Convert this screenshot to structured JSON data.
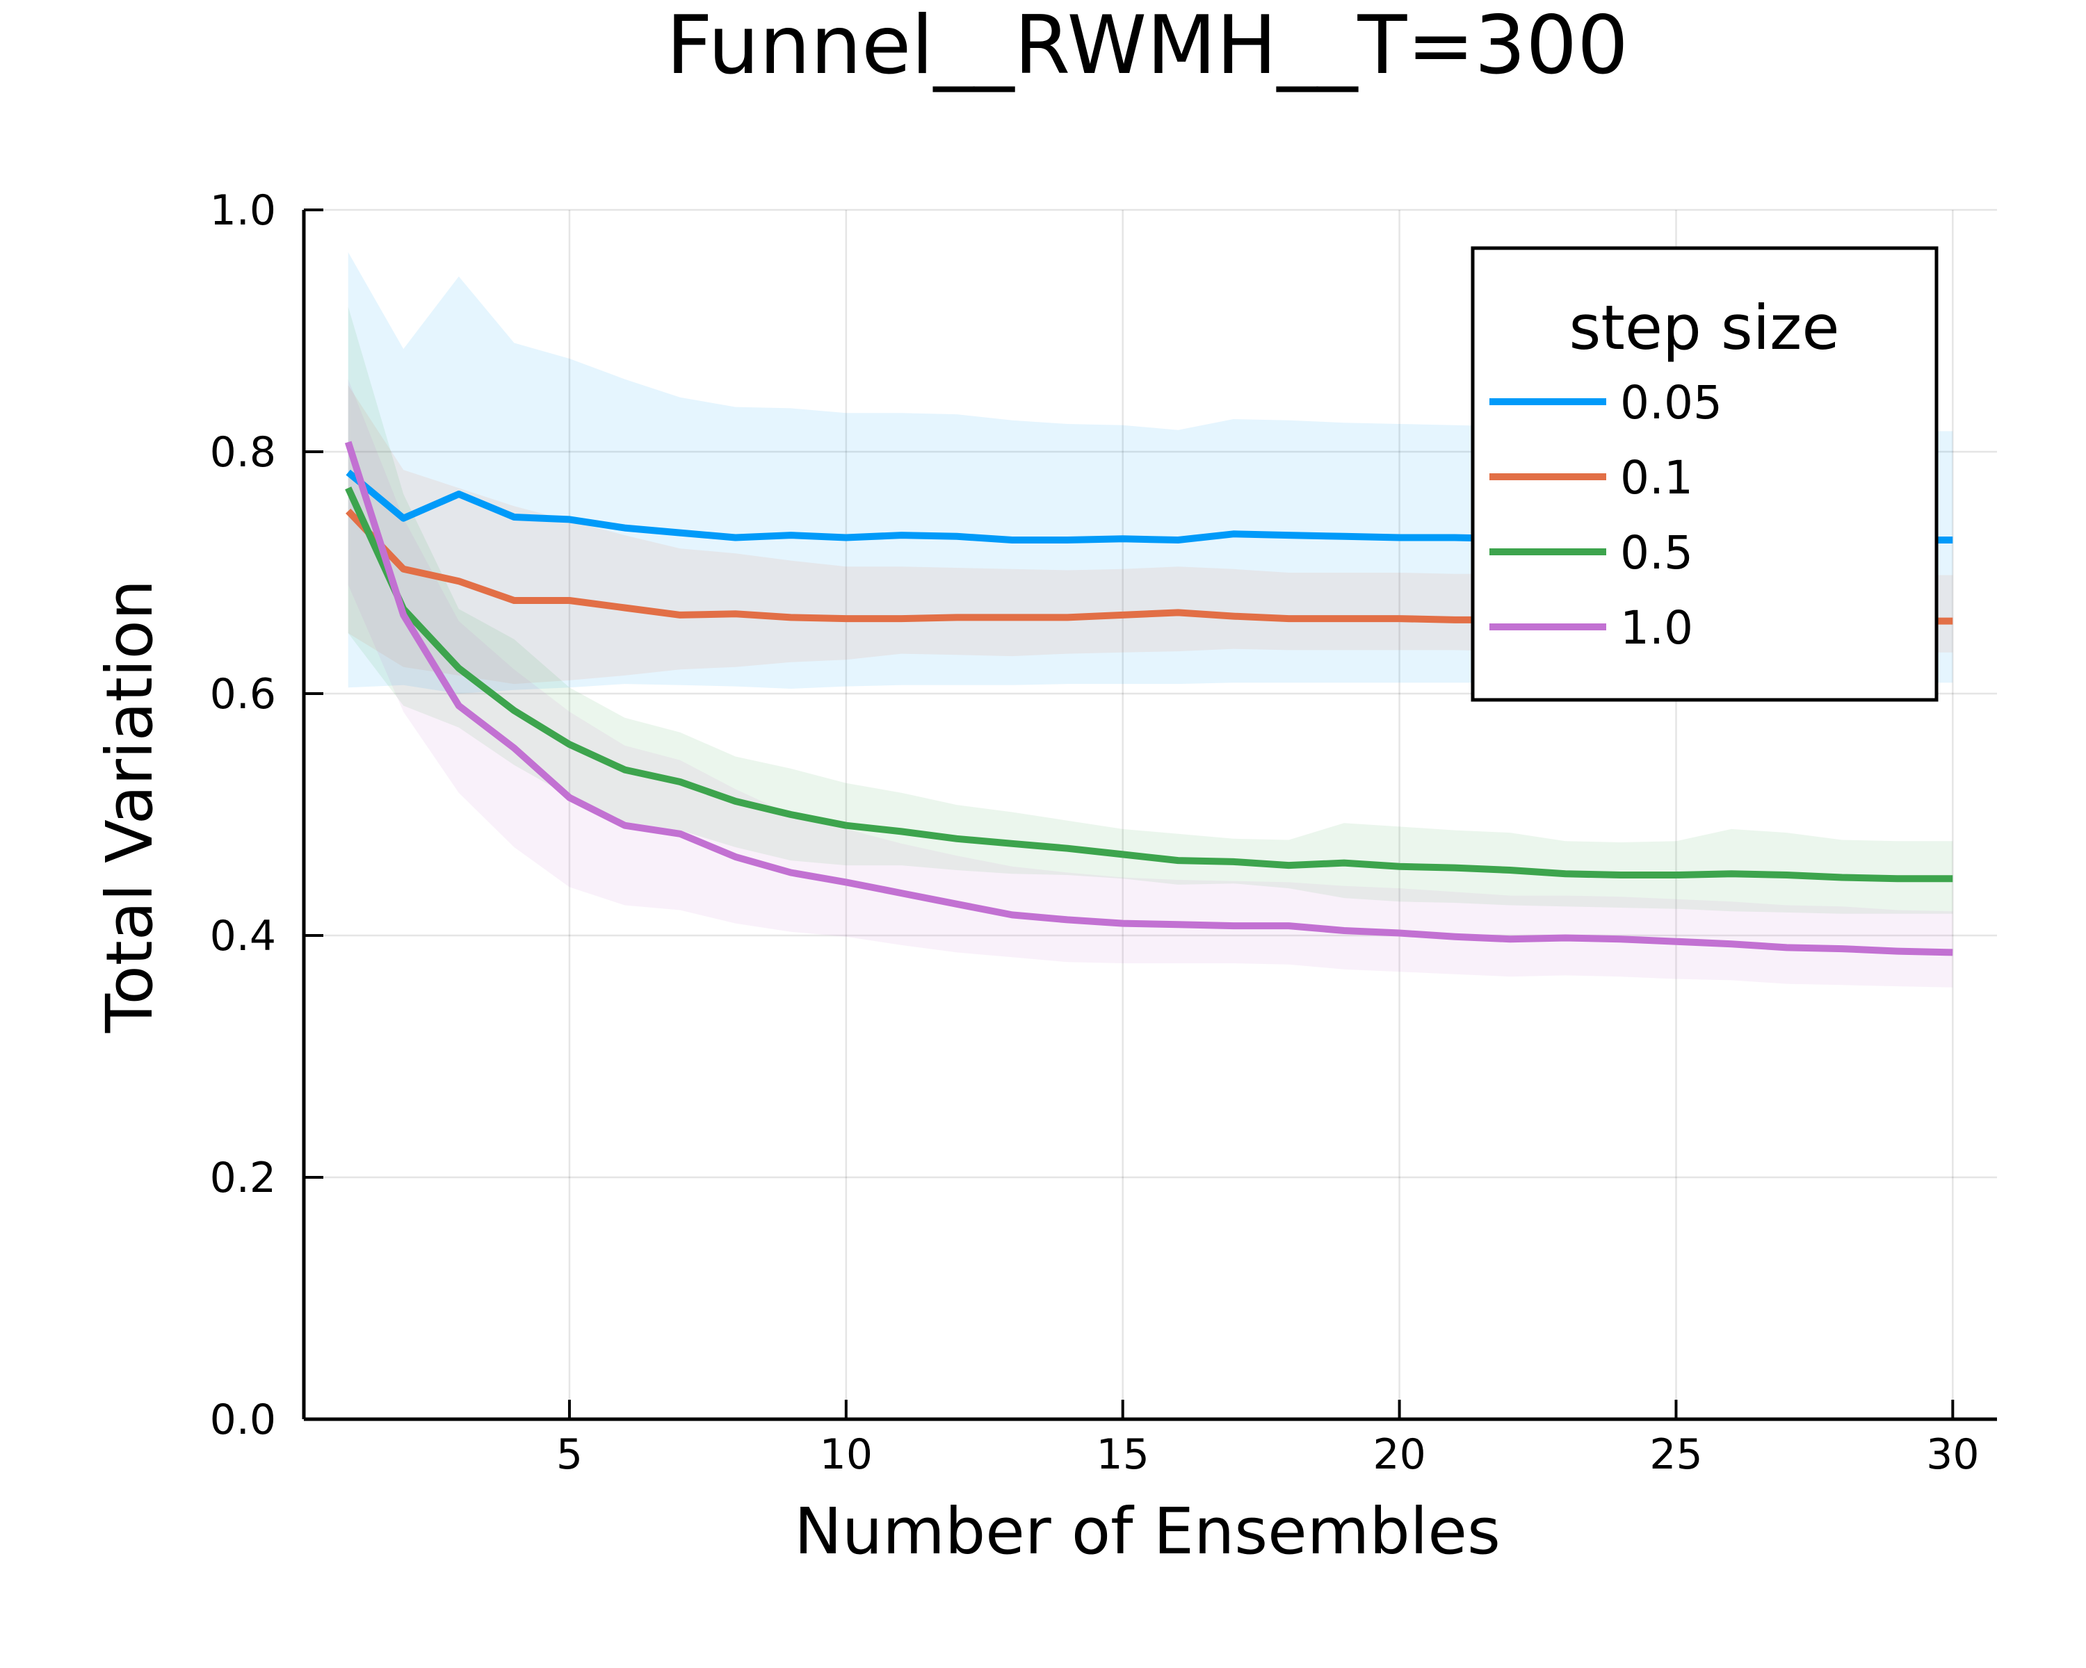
{
  "chart_data": {
    "type": "line",
    "title": "Funnel__RWMH__T=300",
    "xlabel": "Number of Ensembles",
    "ylabel": "Total Variation",
    "xlim": [
      0.2,
      30.8
    ],
    "ylim": [
      0.0,
      1.0
    ],
    "x_ticks": [
      5,
      10,
      15,
      20,
      25,
      30
    ],
    "x_tick_labels": [
      "5",
      "10",
      "15",
      "20",
      "25",
      "30"
    ],
    "y_ticks": [
      0.0,
      0.2,
      0.4,
      0.6,
      0.8,
      1.0
    ],
    "y_tick_labels": [
      "0.0",
      "0.2",
      "0.4",
      "0.6",
      "0.8",
      "1.0"
    ],
    "grid": true,
    "legend": {
      "title": "step size",
      "position": "top-right"
    },
    "x": [
      1,
      2,
      3,
      4,
      5,
      6,
      7,
      8,
      9,
      10,
      11,
      12,
      13,
      14,
      15,
      16,
      17,
      18,
      19,
      20,
      21,
      22,
      23,
      24,
      25,
      26,
      27,
      28,
      29,
      30
    ],
    "series": [
      {
        "name": "0.05",
        "color": "#009af9",
        "values": [
          0.783,
          0.745,
          0.765,
          0.746,
          0.744,
          0.737,
          0.733,
          0.729,
          0.731,
          0.729,
          0.731,
          0.73,
          0.727,
          0.727,
          0.728,
          0.727,
          0.732,
          0.731,
          0.73,
          0.729,
          0.729,
          0.728,
          0.728,
          0.728,
          0.728,
          0.728,
          0.728,
          0.728,
          0.727,
          0.727
        ],
        "band_upper": [
          0.965,
          0.885,
          0.945,
          0.89,
          0.877,
          0.86,
          0.845,
          0.837,
          0.836,
          0.832,
          0.832,
          0.831,
          0.826,
          0.823,
          0.822,
          0.818,
          0.827,
          0.826,
          0.824,
          0.823,
          0.822,
          0.821,
          0.82,
          0.819,
          0.818,
          0.818,
          0.818,
          0.817,
          0.817,
          0.817
        ],
        "band_lower": [
          0.605,
          0.607,
          0.6,
          0.603,
          0.605,
          0.608,
          0.607,
          0.606,
          0.604,
          0.606,
          0.607,
          0.607,
          0.607,
          0.608,
          0.608,
          0.608,
          0.609,
          0.609,
          0.609,
          0.609,
          0.609,
          0.609,
          0.609,
          0.609,
          0.609,
          0.609,
          0.609,
          0.609,
          0.609,
          0.609
        ]
      },
      {
        "name": "0.1",
        "color": "#e26f46",
        "values": [
          0.751,
          0.703,
          0.693,
          0.677,
          0.677,
          0.671,
          0.665,
          0.666,
          0.663,
          0.662,
          0.662,
          0.663,
          0.663,
          0.663,
          0.665,
          0.667,
          0.664,
          0.662,
          0.662,
          0.662,
          0.661,
          0.661,
          0.661,
          0.661,
          0.661,
          0.661,
          0.661,
          0.661,
          0.66,
          0.66
        ],
        "band_upper": [
          0.855,
          0.785,
          0.77,
          0.755,
          0.743,
          0.731,
          0.72,
          0.716,
          0.71,
          0.705,
          0.705,
          0.704,
          0.703,
          0.702,
          0.703,
          0.705,
          0.703,
          0.7,
          0.7,
          0.7,
          0.699,
          0.699,
          0.699,
          0.699,
          0.699,
          0.699,
          0.699,
          0.699,
          0.698,
          0.698
        ],
        "band_lower": [
          0.65,
          0.622,
          0.615,
          0.608,
          0.611,
          0.615,
          0.62,
          0.622,
          0.626,
          0.628,
          0.633,
          0.632,
          0.631,
          0.633,
          0.634,
          0.635,
          0.637,
          0.636,
          0.636,
          0.636,
          0.636,
          0.635,
          0.635,
          0.635,
          0.635,
          0.635,
          0.635,
          0.635,
          0.634,
          0.634
        ]
      },
      {
        "name": "0.5",
        "color": "#3da44d",
        "values": [
          0.77,
          0.67,
          0.621,
          0.586,
          0.558,
          0.537,
          0.527,
          0.511,
          0.5,
          0.491,
          0.486,
          0.48,
          0.476,
          0.472,
          0.467,
          0.462,
          0.461,
          0.458,
          0.46,
          0.457,
          0.456,
          0.454,
          0.451,
          0.45,
          0.45,
          0.451,
          0.45,
          0.448,
          0.447,
          0.447
        ],
        "band_upper": [
          0.92,
          0.765,
          0.67,
          0.645,
          0.605,
          0.58,
          0.568,
          0.548,
          0.538,
          0.526,
          0.518,
          0.508,
          0.502,
          0.495,
          0.488,
          0.484,
          0.48,
          0.479,
          0.493,
          0.49,
          0.487,
          0.485,
          0.478,
          0.477,
          0.478,
          0.488,
          0.485,
          0.479,
          0.478,
          0.478
        ],
        "band_lower": [
          0.65,
          0.59,
          0.572,
          0.541,
          0.515,
          0.494,
          0.487,
          0.473,
          0.462,
          0.458,
          0.458,
          0.454,
          0.451,
          0.45,
          0.447,
          0.442,
          0.443,
          0.439,
          0.431,
          0.428,
          0.427,
          0.425,
          0.424,
          0.423,
          0.422,
          0.42,
          0.419,
          0.418,
          0.418,
          0.418
        ]
      },
      {
        "name": "1.0",
        "color": "#c271d2",
        "values": [
          0.808,
          0.665,
          0.59,
          0.555,
          0.514,
          0.491,
          0.484,
          0.465,
          0.452,
          0.444,
          0.435,
          0.426,
          0.417,
          0.413,
          0.41,
          0.409,
          0.408,
          0.408,
          0.404,
          0.402,
          0.399,
          0.397,
          0.398,
          0.397,
          0.395,
          0.393,
          0.39,
          0.389,
          0.387,
          0.386
        ],
        "band_upper": [
          0.86,
          0.745,
          0.66,
          0.62,
          0.585,
          0.557,
          0.545,
          0.521,
          0.5,
          0.488,
          0.476,
          0.466,
          0.457,
          0.452,
          0.448,
          0.446,
          0.445,
          0.444,
          0.441,
          0.439,
          0.436,
          0.433,
          0.433,
          0.432,
          0.43,
          0.428,
          0.425,
          0.424,
          0.421,
          0.42
        ],
        "band_lower": [
          0.69,
          0.585,
          0.518,
          0.473,
          0.44,
          0.425,
          0.421,
          0.41,
          0.403,
          0.399,
          0.392,
          0.386,
          0.382,
          0.378,
          0.377,
          0.377,
          0.377,
          0.376,
          0.372,
          0.37,
          0.368,
          0.366,
          0.367,
          0.366,
          0.364,
          0.363,
          0.36,
          0.359,
          0.358,
          0.357
        ]
      }
    ]
  }
}
